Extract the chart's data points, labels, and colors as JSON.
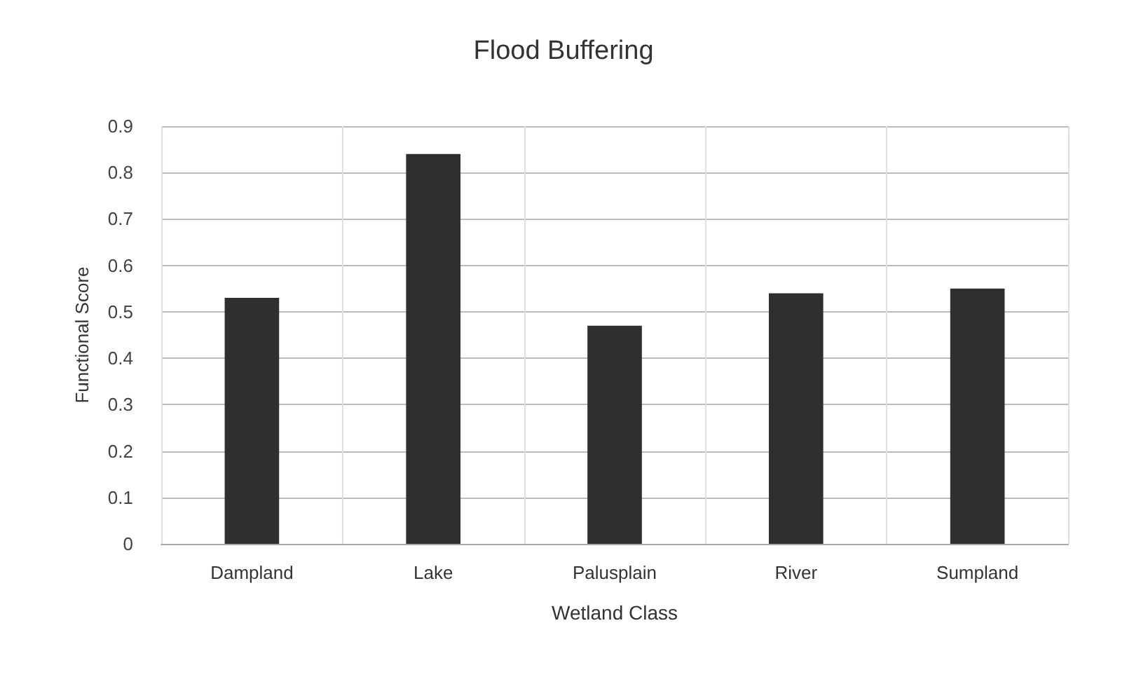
{
  "chart_data": {
    "type": "bar",
    "title": "Flood Buffering",
    "xlabel": "Wetland Class",
    "ylabel": "Functional Score",
    "categories": [
      "Dampland",
      "Lake",
      "Palusplain",
      "River",
      "Sumpland"
    ],
    "values": [
      0.53,
      0.84,
      0.47,
      0.54,
      0.55
    ],
    "color": "#2f2f2f",
    "ylim": [
      0,
      0.9
    ],
    "yticks": [
      0,
      0.1,
      0.2,
      0.3,
      0.4,
      0.5,
      0.6,
      0.7,
      0.8,
      0.9
    ],
    "grid": true
  }
}
